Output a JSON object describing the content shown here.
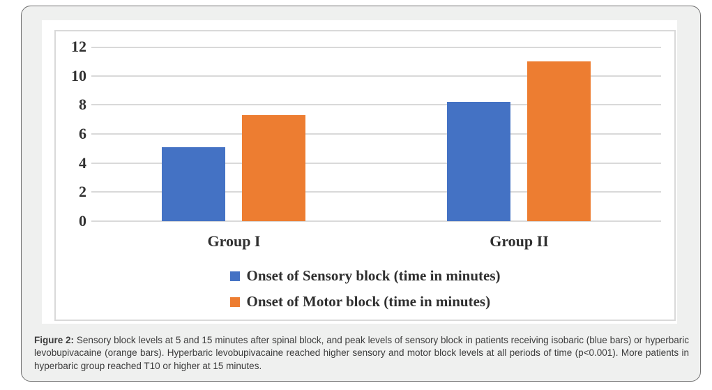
{
  "figure": {
    "caption_label": "Figure 2:",
    "caption_text": "Sensory block levels at 5 and 15 minutes after spinal block, and peak levels of sensory block in patients receiving isobaric (blue bars) or hyperbaric levobupivacaine (orange bars). Hyperbaric levobupivacaine reached higher sensory and motor block levels at all periods of time (p<0.001). More patients in hyperbaric group reached T10 or higher at 15 minutes."
  },
  "chart_data": {
    "type": "bar",
    "title": "",
    "xlabel": "",
    "ylabel": "",
    "categories": [
      "Group I",
      "Group II"
    ],
    "series": [
      {
        "key": "sensory",
        "name": "Onset of Sensory block (time in minutes)",
        "color": "#4472C4",
        "values": [
          5.1,
          8.2
        ]
      },
      {
        "key": "motor",
        "name": "Onset of Motor block (time in minutes)",
        "color": "#ED7D31",
        "values": [
          7.3,
          11
        ]
      }
    ],
    "ylim": [
      0,
      12
    ],
    "yticks": [
      0,
      2,
      4,
      6,
      8,
      10,
      12
    ],
    "grid": true,
    "legend_position": "bottom-center"
  },
  "colors": {
    "gridline": "#D9D9D9",
    "chart_border": "#D9D9D9",
    "panel_background": "#FFFFFF",
    "figure_background": "#EFF0EF",
    "figure_border": "#6F6F6F",
    "chart_text": "#303030",
    "caption_text": "#3C3C3C"
  }
}
